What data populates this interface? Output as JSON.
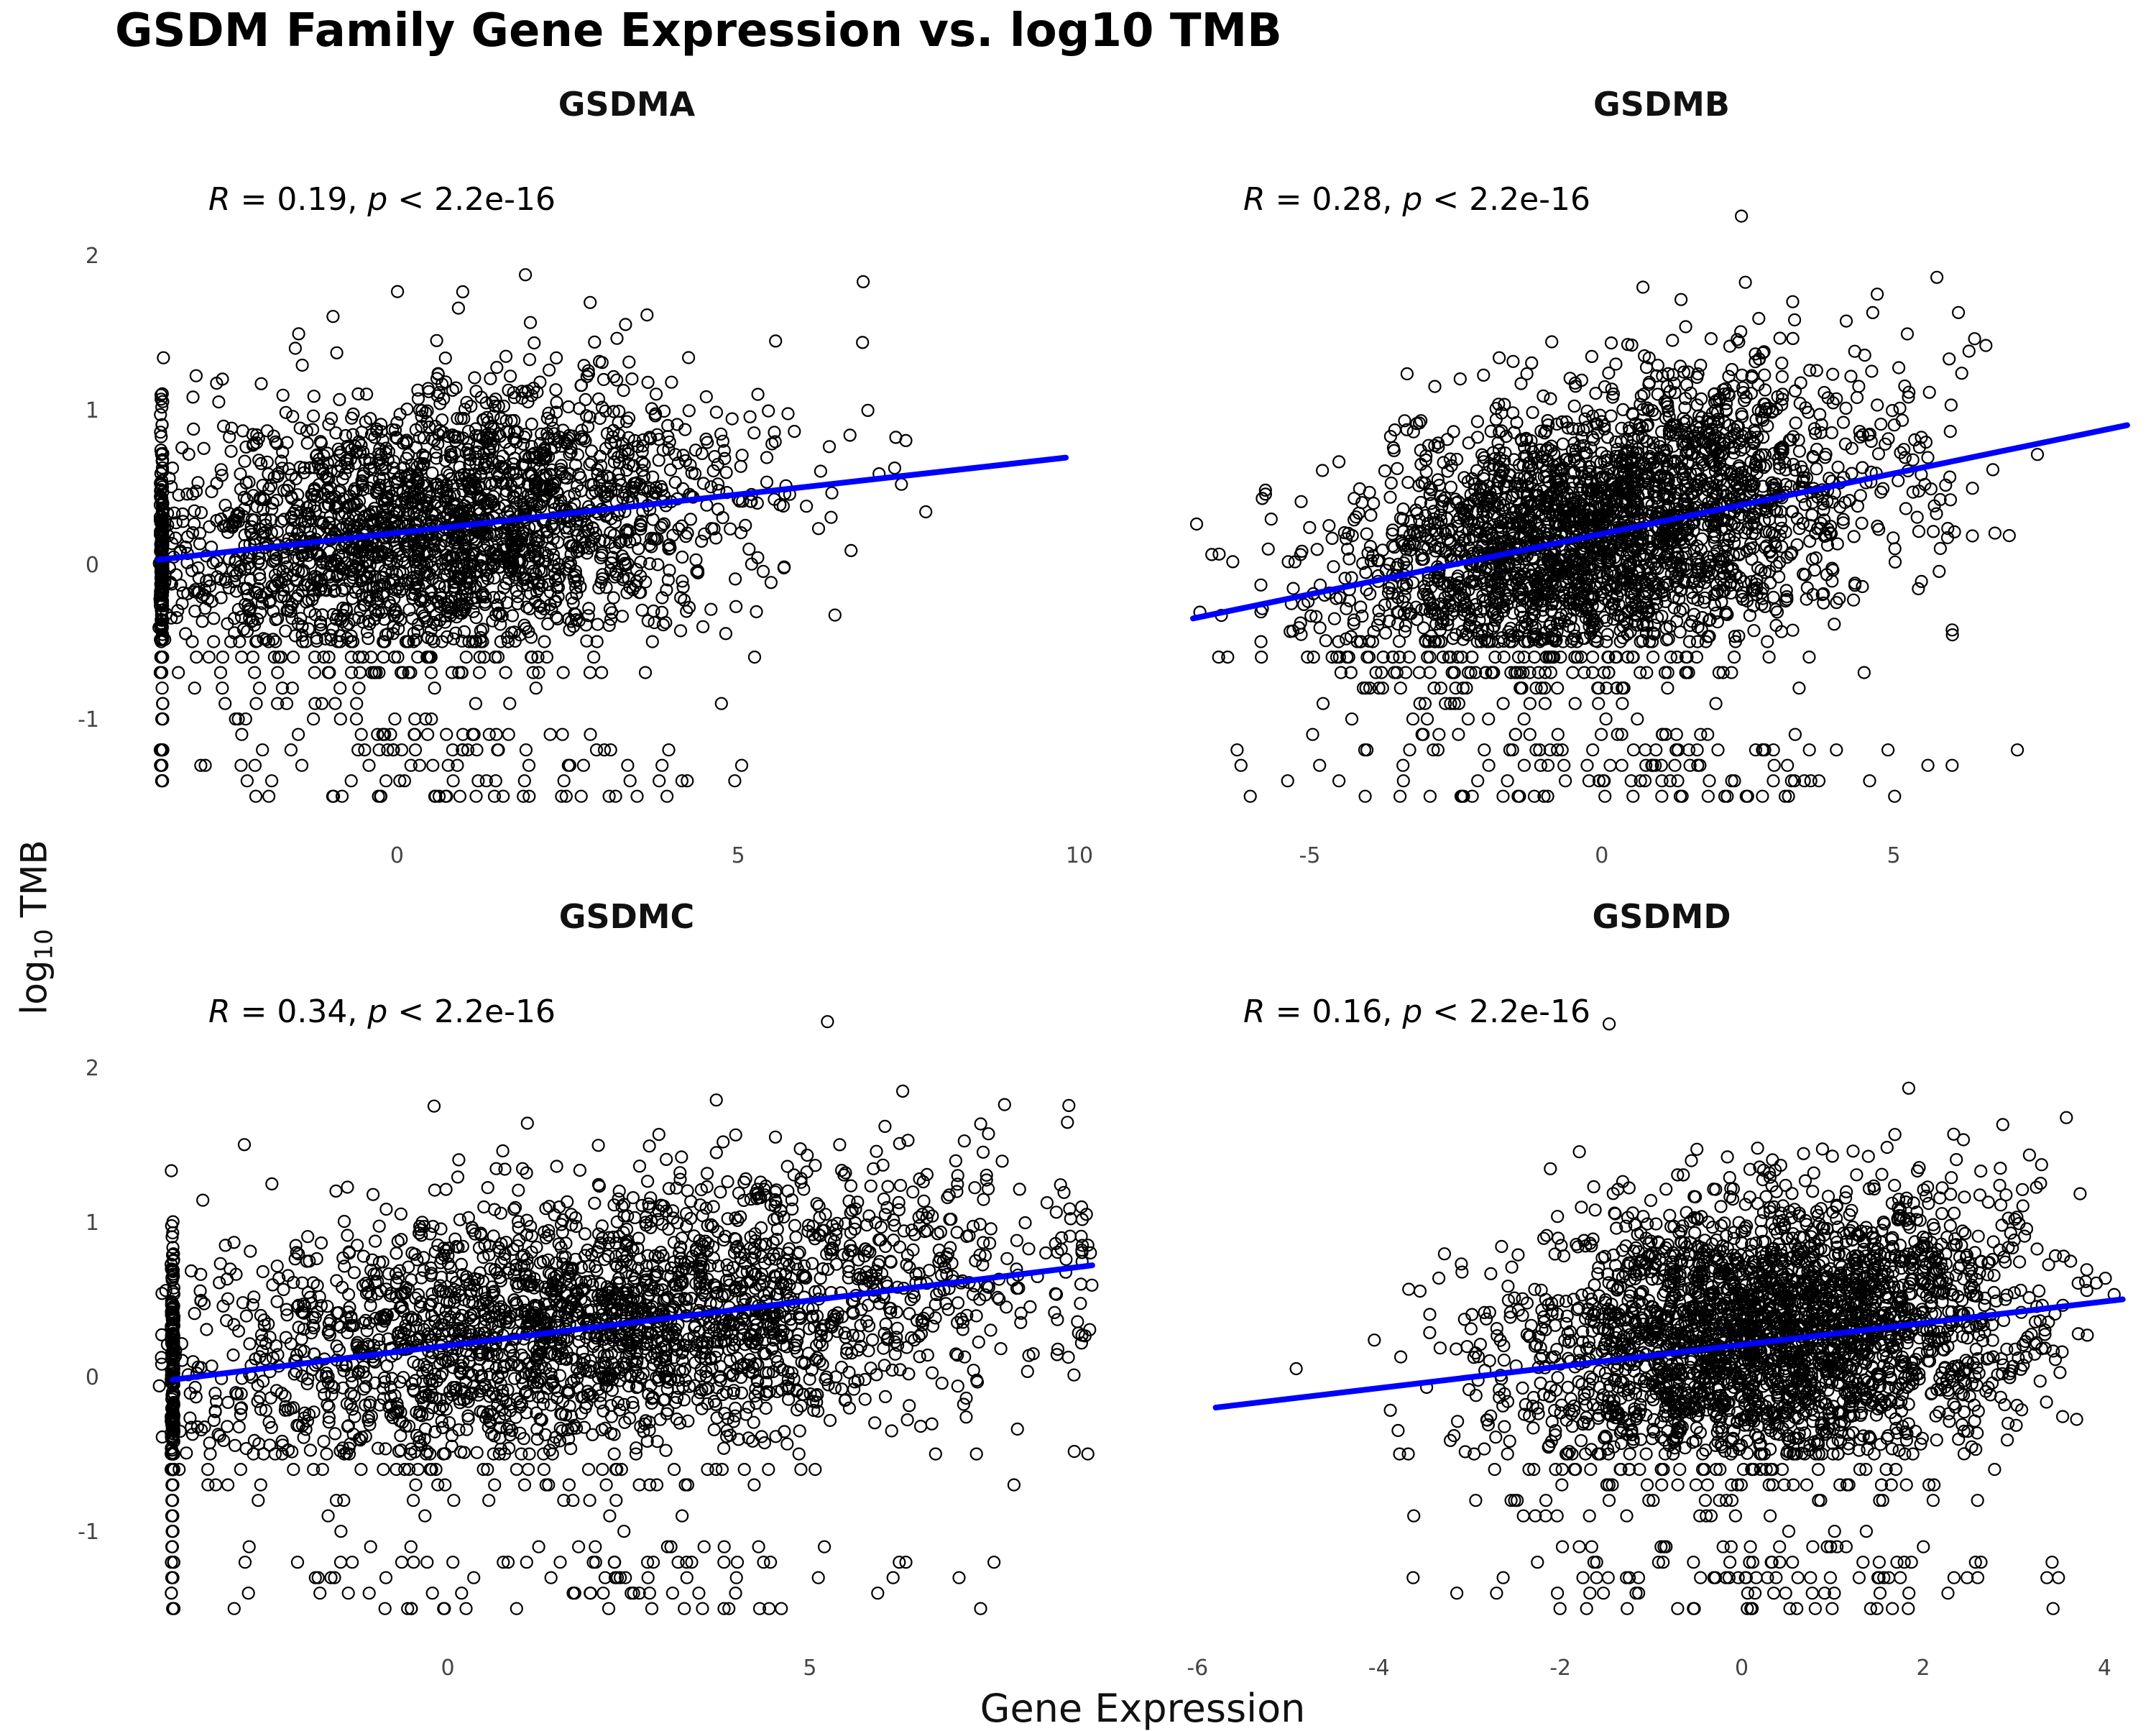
{
  "figure": {
    "title": "GSDM Family Gene Expression vs. log10 TMB",
    "ylabel_main": "log",
    "ylabel_sub": "10",
    "ylabel_tail": " TMB",
    "xlabel": "Gene Expression"
  },
  "chart_data": [
    {
      "type": "scatter",
      "title": "GSDMA",
      "annotation": {
        "R": "0.19",
        "p": "2.2e-16"
      },
      "xlim": [
        -3.5,
        10.4
      ],
      "ylim": [
        -1.65,
        2.65
      ],
      "xticks": [
        "0",
        "5",
        "10"
      ],
      "xtick_values": [
        0,
        5,
        10
      ],
      "yticks": [
        "-1",
        "0",
        "1",
        "2"
      ],
      "ytick_values": [
        -1,
        0,
        1,
        2
      ],
      "fit": {
        "x": [
          -3.5,
          9.8
        ],
        "y": [
          0.03,
          0.69
        ],
        "color": "#0000ff"
      },
      "point_cloud": {
        "n": 2600,
        "x_mean": 0.5,
        "x_sd": 2.2,
        "slope": 0.05,
        "intercept": 0.2,
        "y_sd": 0.45,
        "floor_x": -3.45,
        "floor_count": 180,
        "seed": 11
      }
    },
    {
      "type": "scatter",
      "title": "GSDMB",
      "annotation": {
        "R": "0.28",
        "p": "2.2e-16"
      },
      "xlim": [
        -7,
        9
      ],
      "ylim": [
        -1.65,
        2.65
      ],
      "xticks": [
        "-5",
        "0",
        "5"
      ],
      "xtick_values": [
        -5,
        0,
        5
      ],
      "yticks": [],
      "ytick_values": [],
      "fit": {
        "x": [
          -7,
          9
        ],
        "y": [
          -0.35,
          0.9
        ],
        "color": "#0000ff"
      },
      "point_cloud": {
        "n": 3000,
        "x_mean": 0,
        "x_sd": 2.3,
        "slope": 0.08,
        "intercept": 0.2,
        "y_sd": 0.45,
        "floor_x": null,
        "floor_count": 0,
        "seed": 23
      }
    },
    {
      "type": "scatter",
      "title": "GSDMC",
      "annotation": {
        "R": "0.34",
        "p": "2.2e-16"
      },
      "xlim": [
        -4,
        9.1
      ],
      "ylim": [
        -1.65,
        2.65
      ],
      "xticks": [
        "0",
        "5"
      ],
      "xtick_values": [
        0,
        5
      ],
      "yticks": [
        "-1",
        "0",
        "1",
        "2"
      ],
      "ytick_values": [
        -1,
        0,
        1,
        2
      ],
      "fit": {
        "x": [
          -3.8,
          8.9
        ],
        "y": [
          -0.02,
          0.72
        ],
        "color": "#0000ff"
      },
      "point_cloud": {
        "n": 2800,
        "x_mean": 2.0,
        "x_sd": 3.0,
        "slope": 0.06,
        "intercept": 0.2,
        "y_sd": 0.45,
        "floor_x": -3.8,
        "floor_count": 200,
        "seed": 37
      }
    },
    {
      "type": "scatter",
      "title": "GSDMD",
      "annotation": {
        "R": "0.16",
        "p": "2.2e-16"
      },
      "xlim": [
        -6.05,
        4.25
      ],
      "ylim": [
        -1.65,
        2.65
      ],
      "xticks": [
        "-6",
        "-4",
        "-2",
        "0",
        "2",
        "4"
      ],
      "xtick_values": [
        -6,
        -4,
        -2,
        0,
        2,
        4
      ],
      "yticks": [],
      "ytick_values": [],
      "fit": {
        "x": [
          -5.8,
          4.2
        ],
        "y": [
          -0.2,
          0.5
        ],
        "color": "#0000ff"
      },
      "point_cloud": {
        "n": 3000,
        "x_mean": 0.3,
        "x_sd": 1.4,
        "slope": 0.07,
        "intercept": 0.25,
        "y_sd": 0.45,
        "floor_x": null,
        "floor_count": 0,
        "seed": 53
      }
    }
  ]
}
